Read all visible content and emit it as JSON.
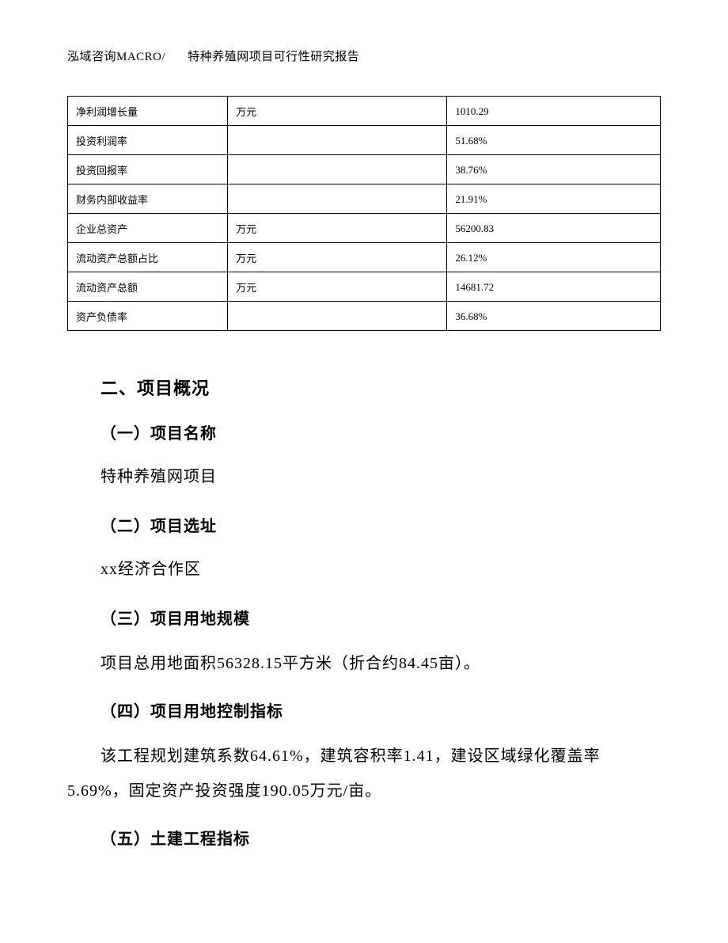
{
  "header": {
    "left": "泓域咨询MACRO/",
    "right": "特种养殖网项目可行性研究报告"
  },
  "table": {
    "rows": [
      {
        "label": "净利润增长量",
        "unit": "万元",
        "value": "1010.29"
      },
      {
        "label": "投资利润率",
        "unit": "",
        "value": "51.68%"
      },
      {
        "label": "投资回报率",
        "unit": "",
        "value": "38.76%"
      },
      {
        "label": "财务内部收益率",
        "unit": "",
        "value": "21.91%"
      },
      {
        "label": "企业总资产",
        "unit": "万元",
        "value": "56200.83"
      },
      {
        "label": "流动资产总额占比",
        "unit": "万元",
        "value": "26.12%"
      },
      {
        "label": "流动资产总额",
        "unit": "万元",
        "value": "14681.72"
      },
      {
        "label": "资产负债率",
        "unit": "",
        "value": "36.68%"
      }
    ]
  },
  "section": {
    "title": "二、项目概况",
    "items": [
      {
        "heading": "（一）项目名称",
        "body": "特种养殖网项目"
      },
      {
        "heading": "（二）项目选址",
        "body": "xx经济合作区"
      },
      {
        "heading": "（三）项目用地规模",
        "body": "项目总用地面积56328.15平方米（折合约84.45亩）。"
      },
      {
        "heading": "（四）项目用地控制指标",
        "body": "该工程规划建筑系数64.61%，建筑容积率1.41，建设区域绿化覆盖率5.69%，固定资产投资强度190.05万元/亩。"
      },
      {
        "heading": "（五）土建工程指标",
        "body": ""
      }
    ]
  },
  "colors": {
    "text": "#000000",
    "background": "#ffffff",
    "border": "#000000"
  },
  "fonts": {
    "body_family": "SimSun",
    "heading_family": "SimHei",
    "header_size_pt": 11,
    "table_size_pt": 10,
    "section_title_size_pt": 16,
    "sub_title_size_pt": 15,
    "body_size_pt": 15
  }
}
